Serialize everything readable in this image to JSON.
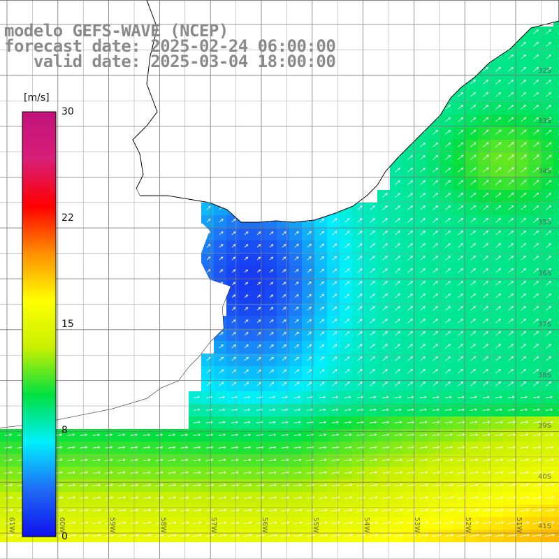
{
  "title": {
    "line1": "modelo GEFS-WAVE (NCEP)",
    "line2": "forecast date: 2025-02-24 06:00:00",
    "line3": "   valid date: 2025-03-04 18:00:00"
  },
  "colorbar": {
    "unit": "[m/s]",
    "min": 0,
    "max": 30,
    "tick_labels": [
      "30",
      "22",
      "15",
      "8",
      "0"
    ],
    "stops": [
      "#1010ee",
      "#1e6cf5",
      "#00f0ff",
      "#00e040",
      "#c8f000",
      "#ffff00",
      "#ff9000",
      "#ff0000",
      "#d81e78",
      "#c0127a"
    ]
  },
  "map": {
    "lon_range": [
      -61,
      -50
    ],
    "lat_range": [
      -31,
      -41
    ],
    "lon_labels": [
      "61W",
      "60W",
      "59W",
      "58W",
      "57W",
      "56W",
      "55W",
      "54W",
      "53W",
      "52W",
      "51W"
    ],
    "lat_labels": [
      "32S",
      "33S",
      "34S",
      "35S",
      "36S",
      "37S",
      "38S",
      "39S",
      "40S",
      "41S"
    ],
    "land_color": "#ffffff",
    "arrow_color": "#ffffff",
    "field": "wind speed",
    "wind_direction": "from the west / south-west"
  }
}
